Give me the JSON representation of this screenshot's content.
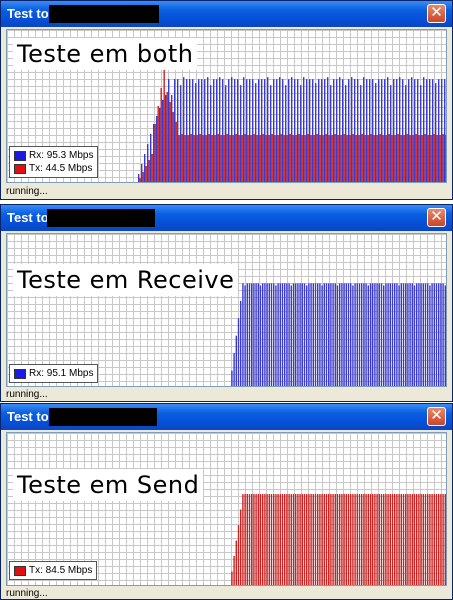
{
  "colors": {
    "rx": "#3a3ad0",
    "tx": "#cc2222",
    "rx_swatch": "#1a1ae0",
    "tx_swatch": "#dd1111"
  },
  "windows": [
    {
      "title": "Test to",
      "label": "Teste em both",
      "status": "running...",
      "legend": [
        {
          "series": "rx",
          "text": "Rx: 95.3 Mbps"
        },
        {
          "series": "tx",
          "text": "Tx: 44.5 Mbps"
        }
      ]
    },
    {
      "title": "Test to",
      "label": "Teste em Receive",
      "status": "running...",
      "legend": [
        {
          "series": "rx",
          "text": "Rx: 95.1 Mbps"
        }
      ]
    },
    {
      "title": "Test to",
      "label": "Teste em Send",
      "status": "running...",
      "legend": [
        {
          "series": "tx",
          "text": "Tx: 84.5 Mbps"
        }
      ]
    }
  ],
  "chart_data": [
    {
      "type": "bar",
      "series": [
        {
          "name": "Rx",
          "level_mbps": 95.3
        },
        {
          "name": "Tx",
          "level_mbps": 44.5
        }
      ]
    },
    {
      "type": "bar",
      "series": [
        {
          "name": "Rx",
          "level_mbps": 95.1
        }
      ]
    },
    {
      "type": "bar",
      "series": [
        {
          "name": "Tx",
          "level_mbps": 84.5
        }
      ]
    }
  ]
}
